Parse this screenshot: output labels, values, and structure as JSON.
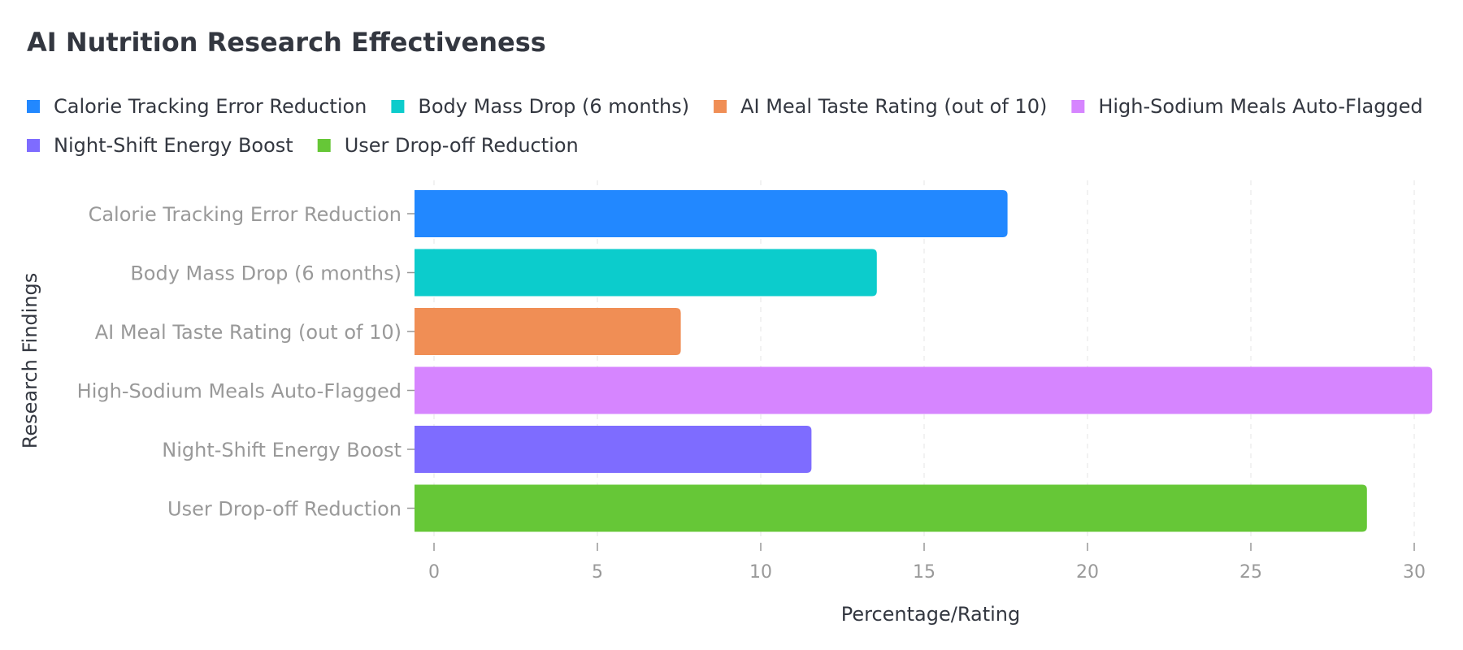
{
  "chart_data": {
    "type": "bar",
    "orientation": "horizontal",
    "title": "AI Nutrition Research Effectiveness",
    "xlabel": "Percentage/Rating",
    "ylabel": "Research Findings",
    "xlim": [
      0,
      30
    ],
    "xticks": [
      0,
      5,
      10,
      15,
      20,
      25,
      30
    ],
    "grid": true,
    "legend_position": "top",
    "categories": [
      "Calorie Tracking Error Reduction",
      "Body Mass Drop (6 months)",
      "AI Meal Taste Rating (out of 10)",
      "High-Sodium Meals Auto-Flagged",
      "Night-Shift Energy Boost",
      "User Drop-off Reduction"
    ],
    "values": [
      18,
      14,
      8,
      31,
      12,
      29
    ],
    "colors": [
      "#2288ff",
      "#0ccccc",
      "#f08e55",
      "#d685ff",
      "#7e6cff",
      "#66c737"
    ]
  }
}
